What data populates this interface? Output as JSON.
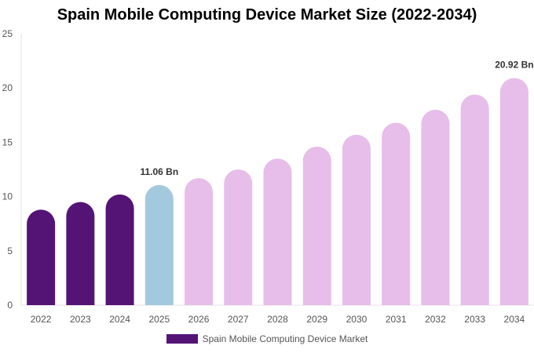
{
  "chart_data": {
    "type": "bar",
    "title": "Spain Mobile Computing Device Market Size (2022-2034)",
    "xlabel": "",
    "ylabel": "",
    "ylim": [
      0,
      25
    ],
    "yticks": [
      "0",
      "5",
      "10",
      "15",
      "20",
      "25"
    ],
    "grid": false,
    "legend_position": "bottom",
    "categories": [
      "2022",
      "2023",
      "2024",
      "2025",
      "2026",
      "2027",
      "2028",
      "2029",
      "2030",
      "2031",
      "2032",
      "2033",
      "2034"
    ],
    "series": [
      {
        "name": "Spain Mobile Computing Device Market",
        "values": [
          8.8,
          9.5,
          10.2,
          11.06,
          11.7,
          12.5,
          13.5,
          14.6,
          15.7,
          16.8,
          18.0,
          19.4,
          20.92
        ]
      }
    ],
    "annotations": [
      {
        "category": "2025",
        "text": "11.06 Bn"
      },
      {
        "category": "2034",
        "text": "20.92 Bn"
      }
    ],
    "colors": {
      "historical": "#541475",
      "base_year": "#a3c9de",
      "forecast": "#e6bee9",
      "legend": "#541475"
    },
    "bar_phase": [
      "historical",
      "historical",
      "historical",
      "base_year",
      "forecast",
      "forecast",
      "forecast",
      "forecast",
      "forecast",
      "forecast",
      "forecast",
      "forecast",
      "forecast"
    ]
  }
}
